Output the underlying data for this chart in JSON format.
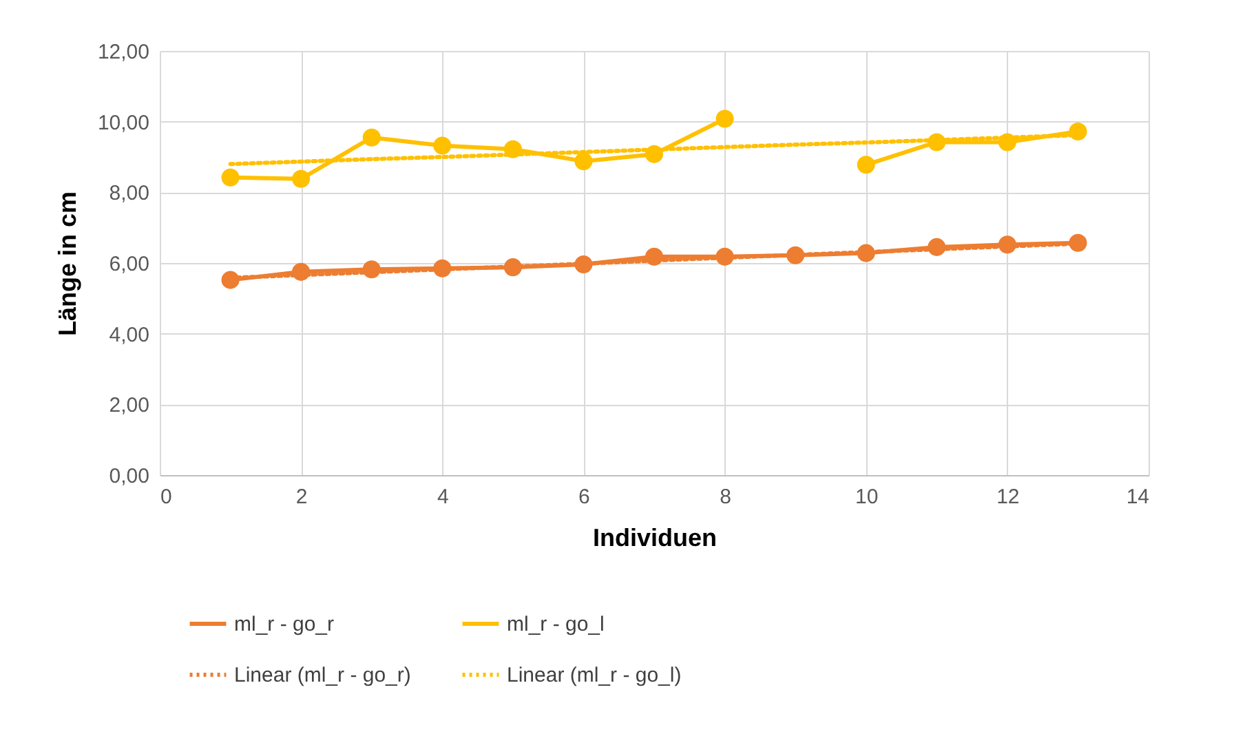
{
  "chart_data": {
    "type": "line",
    "xlabel": "Individuen",
    "ylabel": "Länge in cm",
    "x": [
      1,
      2,
      3,
      4,
      5,
      6,
      7,
      8,
      9,
      10,
      11,
      12,
      13
    ],
    "series": [
      {
        "name": "ml_r - go_r",
        "color": "#ed7d31",
        "marker": "circle",
        "line_style": "solid",
        "values": [
          5.52,
          5.75,
          5.82,
          5.85,
          5.88,
          5.96,
          6.18,
          6.18,
          6.22,
          6.28,
          6.45,
          6.52,
          6.57
        ]
      },
      {
        "name": "ml_r - go_l",
        "color": "#ffc000",
        "marker": "circle",
        "line_style": "solid",
        "values": [
          8.42,
          8.38,
          9.55,
          9.32,
          9.22,
          8.88,
          9.08,
          10.08,
          null,
          8.78,
          9.42,
          9.42,
          9.72
        ]
      },
      {
        "name": "Linear (ml_r - go_r)",
        "type": "line",
        "color": "#ed7d31",
        "marker": "none",
        "line_style": "dotted",
        "values": [
          5.58,
          5.66,
          5.74,
          5.82,
          5.9,
          5.98,
          6.07,
          6.15,
          6.23,
          6.31,
          6.39,
          6.47,
          6.55
        ]
      },
      {
        "name": "Linear (ml_r - go_l)",
        "type": "line",
        "color": "#ffc000",
        "marker": "none",
        "line_style": "dotted",
        "values": [
          8.8,
          8.87,
          8.94,
          9.0,
          9.07,
          9.14,
          9.21,
          9.28,
          9.35,
          9.41,
          9.48,
          9.55,
          9.62
        ]
      }
    ],
    "xlim": [
      0,
      14
    ],
    "xticks": [
      0,
      2,
      4,
      6,
      8,
      10,
      12,
      14
    ],
    "ylim": [
      0,
      12
    ],
    "yticks": [
      {
        "value": 0,
        "label": "0,00"
      },
      {
        "value": 2,
        "label": "2,00"
      },
      {
        "value": 4,
        "label": "4,00"
      },
      {
        "value": 6,
        "label": "6,00"
      },
      {
        "value": 8,
        "label": "8,00"
      },
      {
        "value": 10,
        "label": "10,00"
      },
      {
        "value": 12,
        "label": "12,00"
      }
    ],
    "grid": true,
    "legend": "bottom"
  }
}
